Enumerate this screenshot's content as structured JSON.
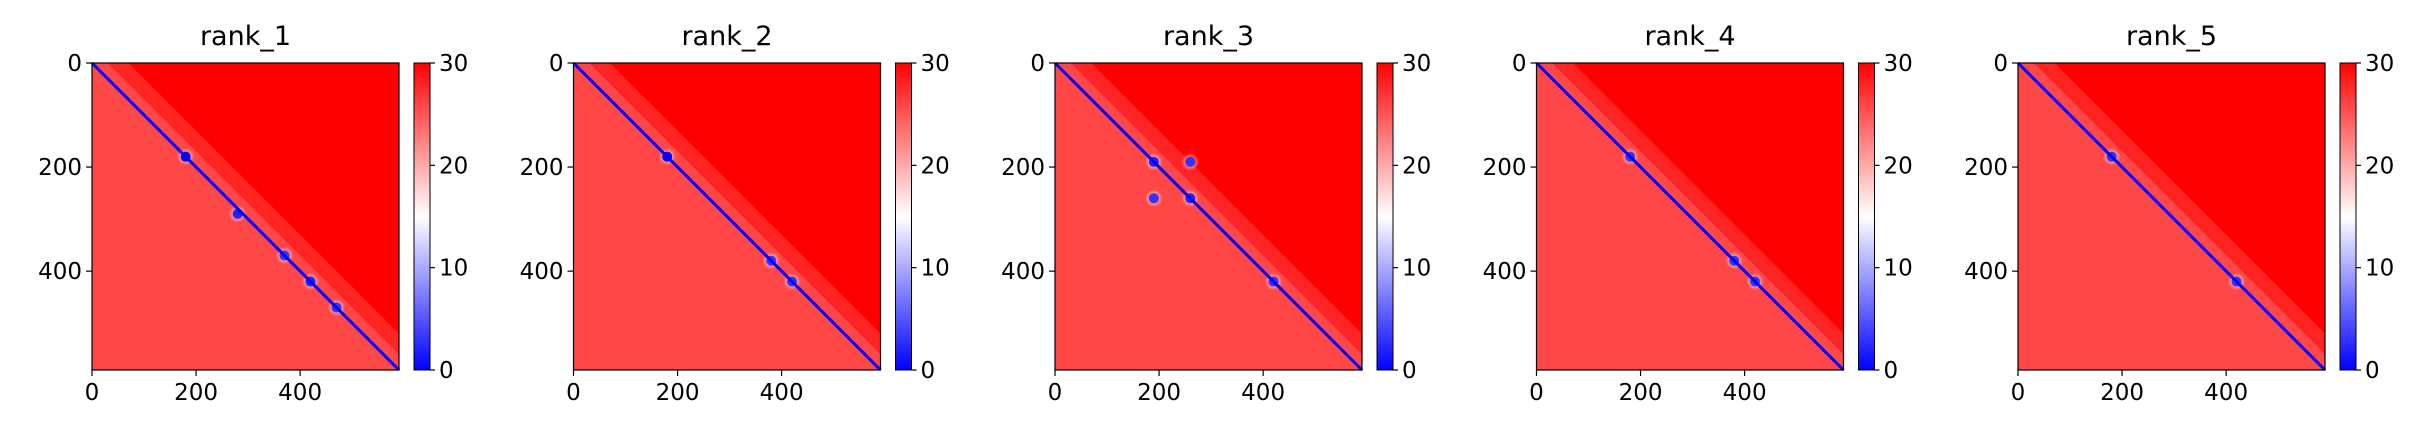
{
  "chart_data": [
    {
      "type": "heatmap",
      "title": "rank_1",
      "x_ticks": [
        "0",
        "200",
        "400"
      ],
      "y_ticks": [
        "0",
        "200",
        "400"
      ],
      "xlim": [
        0,
        590
      ],
      "ylim": [
        590,
        0
      ],
      "colorbar": {
        "ticks": [
          "0",
          "10",
          "20",
          "30"
        ],
        "range": [
          0,
          30
        ],
        "colormap": "bwr"
      },
      "features": [
        {
          "x": 180,
          "y": 180,
          "value": 0
        },
        {
          "x": 280,
          "y": 290,
          "value": 2
        },
        {
          "x": 370,
          "y": 370,
          "value": 3
        },
        {
          "x": 420,
          "y": 420,
          "value": 2
        },
        {
          "x": 470,
          "y": 470,
          "value": 3
        }
      ]
    },
    {
      "type": "heatmap",
      "title": "rank_2",
      "x_ticks": [
        "0",
        "200",
        "400"
      ],
      "y_ticks": [
        "0",
        "200",
        "400"
      ],
      "xlim": [
        0,
        590
      ],
      "ylim": [
        590,
        0
      ],
      "colorbar": {
        "ticks": [
          "0",
          "10",
          "20",
          "30"
        ],
        "range": [
          0,
          30
        ],
        "colormap": "bwr"
      },
      "features": [
        {
          "x": 180,
          "y": 180,
          "value": 0
        },
        {
          "x": 380,
          "y": 380,
          "value": 3
        },
        {
          "x": 420,
          "y": 420,
          "value": 3
        }
      ]
    },
    {
      "type": "heatmap",
      "title": "rank_3",
      "x_ticks": [
        "0",
        "200",
        "400"
      ],
      "y_ticks": [
        "0",
        "200",
        "400"
      ],
      "xlim": [
        0,
        590
      ],
      "ylim": [
        590,
        0
      ],
      "colorbar": {
        "ticks": [
          "0",
          "10",
          "20",
          "30"
        ],
        "range": [
          0,
          30
        ],
        "colormap": "bwr"
      },
      "features": [
        {
          "x": 190,
          "y": 190,
          "value": 2
        },
        {
          "x": 260,
          "y": 190,
          "value": 3
        },
        {
          "x": 190,
          "y": 260,
          "value": 3
        },
        {
          "x": 260,
          "y": 260,
          "value": 2
        },
        {
          "x": 420,
          "y": 420,
          "value": 3
        }
      ]
    },
    {
      "type": "heatmap",
      "title": "rank_4",
      "x_ticks": [
        "0",
        "200",
        "400"
      ],
      "y_ticks": [
        "0",
        "200",
        "400"
      ],
      "xlim": [
        0,
        590
      ],
      "ylim": [
        590,
        0
      ],
      "colorbar": {
        "ticks": [
          "0",
          "10",
          "20",
          "30"
        ],
        "range": [
          0,
          30
        ],
        "colormap": "bwr"
      },
      "features": [
        {
          "x": 180,
          "y": 180,
          "value": 3
        },
        {
          "x": 380,
          "y": 380,
          "value": 3
        },
        {
          "x": 420,
          "y": 420,
          "value": 3
        }
      ]
    },
    {
      "type": "heatmap",
      "title": "rank_5",
      "x_ticks": [
        "0",
        "200",
        "400"
      ],
      "y_ticks": [
        "0",
        "200",
        "400"
      ],
      "xlim": [
        0,
        590
      ],
      "ylim": [
        590,
        0
      ],
      "colorbar": {
        "ticks": [
          "0",
          "10",
          "20",
          "30"
        ],
        "range": [
          0,
          30
        ],
        "colormap": "bwr"
      },
      "features": [
        {
          "x": 180,
          "y": 180,
          "value": 3
        },
        {
          "x": 420,
          "y": 420,
          "value": 3
        }
      ]
    }
  ],
  "colors": {
    "high": "#ff0000",
    "mid": "#ffffff",
    "low": "#0000ff"
  }
}
